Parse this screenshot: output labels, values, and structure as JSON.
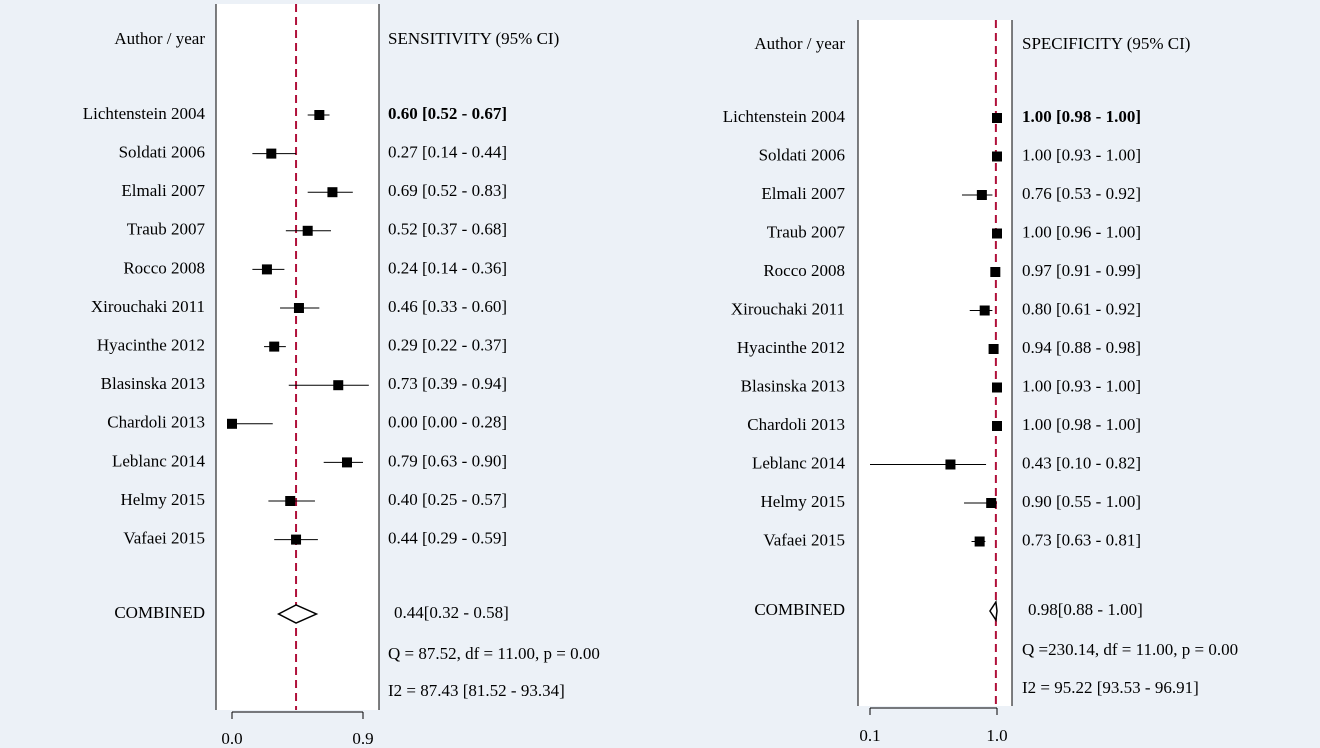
{
  "chart_data": [
    {
      "type": "forest",
      "label_header": "Author / year",
      "value_header": "SENSITIVITY (95% CI)",
      "categories": [
        "Lichtenstein 2004",
        "Soldati 2006",
        "Elmali 2007",
        "Traub 2007",
        "Rocco 2008",
        "Xirouchaki 2011",
        "Hyacinthe 2012",
        "Blasinska 2013",
        "Chardoli 2013",
        "Leblanc 2014",
        "Helmy 2015",
        "Vafaei 2015"
      ],
      "values": [
        0.6,
        0.27,
        0.69,
        0.52,
        0.24,
        0.46,
        0.29,
        0.73,
        0.0,
        0.79,
        0.4,
        0.44
      ],
      "ci_lower": [
        0.52,
        0.14,
        0.52,
        0.37,
        0.14,
        0.33,
        0.22,
        0.39,
        0.0,
        0.63,
        0.25,
        0.29
      ],
      "ci_upper": [
        0.67,
        0.44,
        0.83,
        0.68,
        0.36,
        0.6,
        0.37,
        0.94,
        0.28,
        0.9,
        0.57,
        0.59
      ],
      "value_labels": [
        "0.60 [0.52 - 0.67]",
        "0.27 [0.14 - 0.44]",
        "0.69 [0.52 - 0.83]",
        "0.52 [0.37 - 0.68]",
        "0.24 [0.14 - 0.36]",
        "0.46 [0.33 - 0.60]",
        "0.29 [0.22 - 0.37]",
        "0.73 [0.39 - 0.94]",
        "0.00 [0.00 - 0.28]",
        "0.79 [0.63 - 0.90]",
        "0.40 [0.25 - 0.57]",
        "0.44 [0.29 - 0.59]"
      ],
      "combined": {
        "label": "COMBINED",
        "value": 0.44,
        "ci_lower": 0.32,
        "ci_upper": 0.58,
        "value_label": "0.44[0.32 - 0.58]"
      },
      "annotations": [
        "Q = 87.52, df = 11.00, p =  0.00",
        "I2 = 87.43 [81.52 - 93.34]"
      ],
      "xlim": [
        0,
        0.9
      ],
      "xticks": [
        {
          "value": 0,
          "label": "0.0"
        },
        0.9
      ],
      "log_scale": false,
      "color": "#000000",
      "reference_color": "#b0103a"
    },
    {
      "type": "forest",
      "label_header": "Author / year",
      "value_header": "SPECIFICITY (95% CI)",
      "categories": [
        "Lichtenstein 2004",
        "Soldati 2006",
        "Elmali 2007",
        "Traub 2007",
        "Rocco 2008",
        "Xirouchaki 2011",
        "Hyacinthe 2012",
        "Blasinska 2013",
        "Chardoli 2013",
        "Leblanc 2014",
        "Helmy 2015",
        "Vafaei 2015"
      ],
      "values": [
        1.0,
        1.0,
        0.76,
        1.0,
        0.97,
        0.8,
        0.94,
        1.0,
        1.0,
        0.43,
        0.9,
        0.73
      ],
      "ci_lower": [
        0.98,
        0.93,
        0.53,
        0.96,
        0.91,
        0.61,
        0.88,
        0.93,
        0.98,
        0.1,
        0.55,
        0.63
      ],
      "ci_upper": [
        1.0,
        1.0,
        0.92,
        1.0,
        0.99,
        0.92,
        0.98,
        1.0,
        1.0,
        0.82,
        1.0,
        0.81
      ],
      "value_labels": [
        "1.00 [0.98 - 1.00]",
        "1.00 [0.93 - 1.00]",
        "0.76 [0.53 - 0.92]",
        "1.00 [0.96 - 1.00]",
        "0.97 [0.91 - 0.99]",
        "0.80 [0.61 - 0.92]",
        "0.94 [0.88 - 0.98]",
        "1.00 [0.93 - 1.00]",
        "1.00 [0.98 - 1.00]",
        "0.43 [0.10 - 0.82]",
        "0.90 [0.55 - 1.00]",
        "0.73 [0.63 - 0.81]"
      ],
      "combined": {
        "label": "COMBINED",
        "value": 0.98,
        "ci_lower": 0.88,
        "ci_upper": 1.0,
        "value_label": "0.98[0.88 - 1.00]"
      },
      "annotations": [
        "Q =230.14, df = 11.00, p =  0.00",
        "I2 = 95.22 [93.53 - 96.91]"
      ],
      "xlim": [
        0.1,
        1.0
      ],
      "xticks": [
        0.1,
        {
          "value": 1.0,
          "label": "1.0"
        }
      ],
      "log_scale": true,
      "color": "#000000",
      "reference_color": "#b0103a"
    }
  ]
}
